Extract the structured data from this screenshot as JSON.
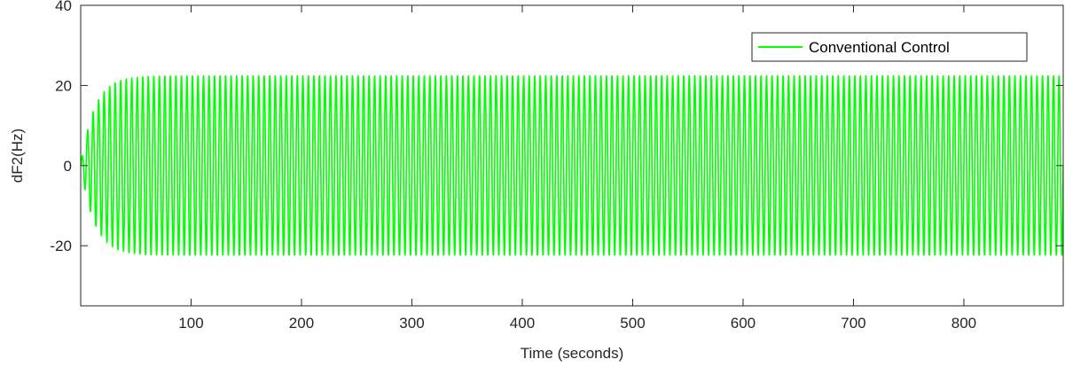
{
  "chart_data": {
    "type": "line",
    "title": "",
    "xlabel": "Time (seconds)",
    "ylabel": "dF2(Hz)",
    "xlim": [
      0,
      890
    ],
    "ylim": [
      -35,
      40
    ],
    "xticks": [
      100,
      200,
      300,
      400,
      500,
      600,
      700,
      800
    ],
    "yticks": [
      -20,
      0,
      20,
      40
    ],
    "xtick_labels": [
      "100",
      "200",
      "300",
      "400",
      "500",
      "600",
      "700",
      "800"
    ],
    "ytick_labels": [
      "-20",
      "0",
      "20",
      "40"
    ],
    "grid": false,
    "legend_position": "top-right",
    "series": [
      {
        "name": "Conventional Control",
        "color": "#00ff00",
        "waveform": "growing-sinusoid",
        "steady_amplitude": 22.5,
        "period": 5,
        "settle_time": 55
      }
    ]
  }
}
